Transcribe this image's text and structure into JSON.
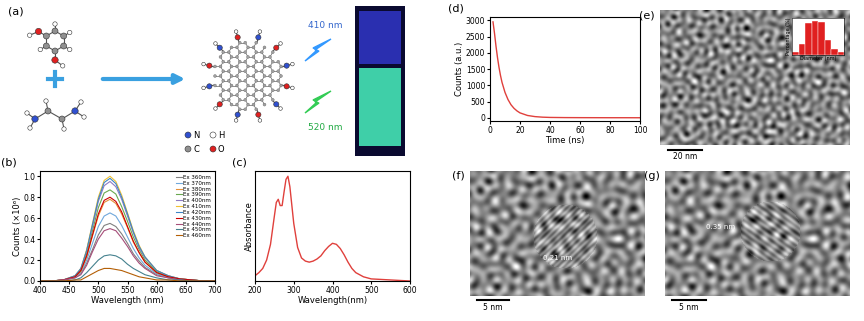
{
  "panels": {
    "a": {
      "label": "(a)",
      "atoms": [
        "N",
        "H",
        "C",
        "O"
      ],
      "emission": [
        "410 nm",
        "520 nm"
      ]
    },
    "e": {
      "label": "(e)",
      "scale_bar": "20 nm"
    },
    "f": {
      "label": "(f)",
      "scale_bar": "5 nm",
      "fringe": "0.21 nm"
    },
    "g": {
      "label": "(g)",
      "scale_bar": "5 nm",
      "fringe": "0.35 nm"
    }
  },
  "chart_data": [
    {
      "type": "line",
      "title": "(b)",
      "xlabel": "Wavelength (nm)",
      "ylabel": "Counts (×10⁶)",
      "x": [
        400,
        420,
        440,
        460,
        470,
        480,
        490,
        500,
        510,
        520,
        530,
        540,
        550,
        560,
        570,
        580,
        600,
        620,
        640,
        660,
        680,
        700
      ],
      "series": [
        {
          "name": "Ex 360nm",
          "color": "#808080",
          "values": [
            0,
            0,
            0.01,
            0.03,
            0.07,
            0.17,
            0.3,
            0.44,
            0.53,
            0.55,
            0.52,
            0.45,
            0.36,
            0.26,
            0.19,
            0.13,
            0.06,
            0.03,
            0.01,
            0.01,
            0,
            0
          ]
        },
        {
          "name": "Ex 370nm",
          "color": "#6fa8dc",
          "values": [
            0,
            0,
            0.01,
            0.03,
            0.08,
            0.2,
            0.36,
            0.52,
            0.62,
            0.65,
            0.62,
            0.53,
            0.42,
            0.31,
            0.22,
            0.15,
            0.07,
            0.03,
            0.01,
            0.01,
            0,
            0
          ]
        },
        {
          "name": "Ex 380nm",
          "color": "#e69138",
          "values": [
            0,
            0,
            0.01,
            0.04,
            0.09,
            0.23,
            0.43,
            0.62,
            0.75,
            0.78,
            0.74,
            0.64,
            0.51,
            0.37,
            0.27,
            0.18,
            0.08,
            0.04,
            0.02,
            0.01,
            0,
            0
          ]
        },
        {
          "name": "Ex 390nm",
          "color": "#6aa84f",
          "values": [
            0,
            0,
            0.01,
            0.04,
            0.1,
            0.26,
            0.48,
            0.7,
            0.84,
            0.87,
            0.83,
            0.71,
            0.57,
            0.42,
            0.3,
            0.2,
            0.09,
            0.04,
            0.02,
            0.01,
            0,
            0
          ]
        },
        {
          "name": "Ex 400nm",
          "color": "#8e7cc3",
          "values": [
            0,
            0,
            0.01,
            0.05,
            0.11,
            0.29,
            0.52,
            0.76,
            0.91,
            0.95,
            0.9,
            0.78,
            0.62,
            0.46,
            0.32,
            0.22,
            0.1,
            0.05,
            0.02,
            0.01,
            0,
            0
          ]
        },
        {
          "name": "Ex 410nm",
          "color": "#f1c232",
          "values": [
            0,
            0,
            0.01,
            0.05,
            0.12,
            0.3,
            0.55,
            0.8,
            0.96,
            1.0,
            0.95,
            0.82,
            0.65,
            0.48,
            0.34,
            0.23,
            0.1,
            0.05,
            0.02,
            0.01,
            0,
            0
          ]
        },
        {
          "name": "Ex 420nm",
          "color": "#3d85c6",
          "values": [
            0,
            0,
            0.01,
            0.05,
            0.12,
            0.29,
            0.54,
            0.78,
            0.94,
            0.98,
            0.93,
            0.8,
            0.64,
            0.47,
            0.33,
            0.23,
            0.1,
            0.05,
            0.02,
            0.01,
            0,
            0
          ]
        },
        {
          "name": "Ex 430nm",
          "color": "#cc0000",
          "values": [
            0,
            0,
            0.01,
            0.04,
            0.1,
            0.24,
            0.44,
            0.64,
            0.77,
            0.8,
            0.76,
            0.66,
            0.52,
            0.38,
            0.27,
            0.18,
            0.08,
            0.04,
            0.02,
            0.01,
            0,
            0
          ]
        },
        {
          "name": "Ex 440nm",
          "color": "#a64d79",
          "values": [
            0,
            0,
            0.01,
            0.03,
            0.06,
            0.15,
            0.28,
            0.4,
            0.48,
            0.5,
            0.48,
            0.41,
            0.33,
            0.24,
            0.17,
            0.12,
            0.05,
            0.03,
            0.01,
            0,
            0,
            0
          ]
        },
        {
          "name": "Ex 450nm",
          "color": "#45818e",
          "values": [
            0,
            0,
            0,
            0.01,
            0.03,
            0.08,
            0.14,
            0.2,
            0.24,
            0.25,
            0.24,
            0.21,
            0.16,
            0.12,
            0.09,
            0.06,
            0.03,
            0.01,
            0.01,
            0,
            0,
            0
          ]
        },
        {
          "name": "Ex 460nm",
          "color": "#b45f06",
          "values": [
            0,
            0,
            0,
            0.01,
            0.01,
            0.04,
            0.07,
            0.1,
            0.12,
            0.12,
            0.11,
            0.1,
            0.08,
            0.06,
            0.04,
            0.03,
            0.01,
            0.01,
            0,
            0,
            0,
            0
          ]
        }
      ],
      "xlim": [
        400,
        700
      ],
      "ylim": [
        0,
        1.05
      ],
      "xticks": [
        400,
        450,
        500,
        550,
        600,
        650,
        700
      ],
      "yticks": [
        0.0,
        0.2,
        0.4,
        0.6,
        0.8,
        1.0
      ],
      "legend": "upper right"
    },
    {
      "type": "line",
      "title": "(c)",
      "xlabel": "Wavelength(nm)",
      "ylabel": "Absorbance",
      "x": [
        200,
        210,
        220,
        230,
        240,
        250,
        255,
        260,
        265,
        270,
        275,
        280,
        285,
        290,
        300,
        310,
        320,
        330,
        340,
        350,
        360,
        370,
        380,
        390,
        400,
        410,
        420,
        430,
        440,
        450,
        460,
        480,
        500,
        550,
        600
      ],
      "values": [
        0.05,
        0.08,
        0.12,
        0.2,
        0.35,
        0.62,
        0.75,
        0.78,
        0.72,
        0.72,
        0.85,
        0.97,
        1.0,
        0.9,
        0.55,
        0.32,
        0.22,
        0.19,
        0.18,
        0.19,
        0.21,
        0.24,
        0.29,
        0.33,
        0.36,
        0.35,
        0.31,
        0.25,
        0.18,
        0.12,
        0.08,
        0.04,
        0.02,
        0.01,
        0.0
      ],
      "color": "#e0403c",
      "xlim": [
        200,
        600
      ],
      "ylim": [
        0,
        1.05
      ],
      "xticks": [
        200,
        300,
        400,
        500,
        600
      ],
      "yticks": [],
      "tick_labels": "x"
    },
    {
      "type": "line",
      "title": "(d)",
      "xlabel": "Time (ns)",
      "ylabel": "Counts (a.u.)",
      "x": [
        2,
        3,
        4,
        5,
        6,
        7,
        8,
        10,
        12,
        14,
        16,
        18,
        20,
        25,
        30,
        35,
        40,
        50,
        60,
        70,
        80,
        90,
        100
      ],
      "values": [
        2950,
        2600,
        2200,
        1850,
        1550,
        1300,
        1090,
        780,
        560,
        400,
        290,
        210,
        150,
        70,
        35,
        18,
        10,
        5,
        3,
        2,
        1,
        1,
        0
      ],
      "color": "#e0403c",
      "xlim": [
        0,
        100
      ],
      "ylim": [
        -100,
        3100
      ],
      "xticks": [
        0,
        20,
        40,
        60,
        80,
        100
      ],
      "yticks": [
        0,
        500,
        1000,
        1500,
        2000,
        2500,
        3000
      ]
    },
    {
      "type": "histogram",
      "xlabel": "Diameter (nm)",
      "ylabel": "Percentage (%)",
      "bins": [
        1.0,
        1.5,
        2.0,
        2.5,
        3.0,
        3.5,
        4.0,
        4.5,
        5.0
      ],
      "values": [
        3,
        10,
        30,
        32,
        31,
        14,
        6,
        3
      ],
      "color": "#e02020",
      "xlim": [
        1.0,
        5.0
      ],
      "ylim": [
        0,
        35
      ],
      "xticks": [],
      "yticks": [],
      "tick_labels": false
    }
  ]
}
